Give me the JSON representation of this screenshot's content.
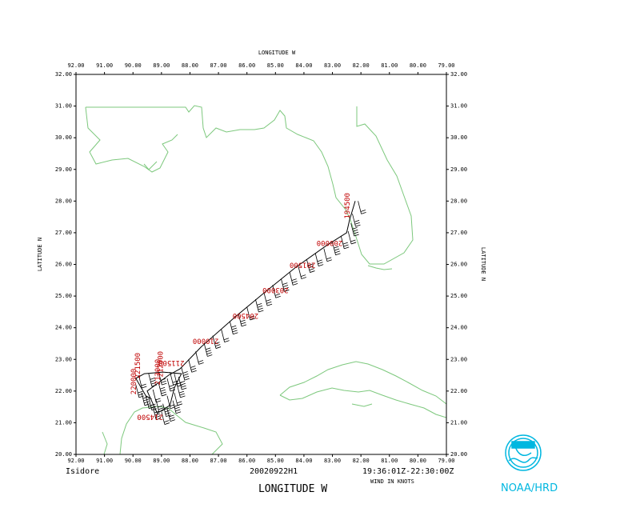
{
  "title_top": "LONGITUDE  W",
  "xlabel_bottom": "LONGITUDE   W",
  "ylabel_left": "LATITUDE   N",
  "ylabel_right": "LATITUDE   N",
  "storm_name": "Isidore",
  "flight_id": "20020922H1",
  "time_range": "19:36:01Z-22:30:00Z",
  "wind_units": "WIND IN KNOTS",
  "agency": "NOAA/HRD",
  "colors": {
    "coast": "#7dc87d",
    "track": "#000000",
    "time_labels": "#c00000",
    "logo": "#00b7e0"
  },
  "map": {
    "lon_range": [
      79,
      92
    ],
    "lat_range": [
      20,
      32
    ],
    "lon_ticks": [
      "92.00",
      "91.00",
      "90.00",
      "89.00",
      "88.00",
      "87.00",
      "86.00",
      "85.00",
      "84.00",
      "83.00",
      "82.00",
      "81.00",
      "80.00",
      "79.00"
    ],
    "lat_ticks": [
      "32.00",
      "31.00",
      "30.00",
      "29.00",
      "28.00",
      "27.00",
      "26.00",
      "25.00",
      "24.00",
      "23.00",
      "22.00",
      "21.00",
      "20.00"
    ]
  },
  "time_labels": [
    {
      "text": "194500",
      "lon": 82.4,
      "lat": 27.85,
      "rot": -90
    },
    {
      "text": "200000",
      "lon": 83.1,
      "lat": 26.75,
      "rot": 180
    },
    {
      "text": "201500",
      "lon": 84.05,
      "lat": 26.05,
      "rot": 180
    },
    {
      "text": "203000",
      "lon": 85.0,
      "lat": 25.25,
      "rot": 180
    },
    {
      "text": "204500",
      "lon": 86.05,
      "lat": 24.45,
      "rot": 180
    },
    {
      "text": "210000",
      "lon": 87.45,
      "lat": 23.65,
      "rot": 180
    },
    {
      "text": "211500",
      "lon": 88.65,
      "lat": 22.95,
      "rot": 180
    },
    {
      "text": "212000",
      "lon": 88.95,
      "lat": 22.85,
      "rot": -90
    },
    {
      "text": "213000",
      "lon": 89.05,
      "lat": 22.6,
      "rot": -90
    },
    {
      "text": "221500",
      "lon": 89.75,
      "lat": 22.8,
      "rot": -90
    },
    {
      "text": "220000",
      "lon": 89.9,
      "lat": 22.3,
      "rot": -90
    },
    {
      "text": "214500",
      "lon": 89.4,
      "lat": 21.25,
      "rot": 180
    }
  ],
  "track": [
    [
      82.2,
      28.0
    ],
    [
      82.4,
      27.4
    ],
    [
      82.5,
      27.0
    ],
    [
      83.2,
      26.6
    ],
    [
      84.3,
      25.9
    ],
    [
      85.4,
      25.1
    ],
    [
      86.4,
      24.35
    ],
    [
      87.6,
      23.4
    ],
    [
      88.35,
      22.7
    ],
    [
      88.75,
      22.5
    ],
    [
      89.5,
      22.0
    ],
    [
      89.15,
      21.3
    ],
    [
      88.7,
      21.55
    ],
    [
      88.55,
      22.1
    ],
    [
      88.3,
      22.55
    ],
    [
      88.95,
      22.6
    ],
    [
      89.6,
      22.55
    ],
    [
      89.9,
      22.4
    ],
    [
      89.55,
      21.85
    ],
    [
      89.35,
      21.75
    ]
  ],
  "barbs": [
    [
      82.1,
      28.0
    ],
    [
      82.3,
      27.6
    ],
    [
      82.35,
      27.3
    ],
    [
      82.45,
      27.05
    ],
    [
      82.7,
      26.9
    ],
    [
      83.0,
      26.7
    ],
    [
      83.3,
      26.5
    ],
    [
      83.6,
      26.35
    ],
    [
      83.9,
      26.15
    ],
    [
      84.2,
      25.95
    ],
    [
      84.5,
      25.75
    ],
    [
      84.8,
      25.55
    ],
    [
      85.1,
      25.35
    ],
    [
      85.4,
      25.1
    ],
    [
      85.7,
      24.9
    ],
    [
      86.0,
      24.65
    ],
    [
      86.3,
      24.45
    ],
    [
      86.6,
      24.2
    ],
    [
      86.9,
      23.95
    ],
    [
      87.2,
      23.75
    ],
    [
      87.5,
      23.5
    ],
    [
      87.8,
      23.25
    ],
    [
      88.05,
      23.0
    ],
    [
      88.3,
      22.75
    ],
    [
      88.55,
      22.55
    ],
    [
      88.8,
      22.4
    ],
    [
      89.1,
      22.25
    ],
    [
      89.3,
      22.05
    ],
    [
      89.45,
      21.8
    ],
    [
      89.3,
      21.5
    ],
    [
      89.0,
      21.35
    ],
    [
      88.8,
      21.45
    ],
    [
      88.6,
      21.7
    ],
    [
      88.55,
      21.95
    ],
    [
      88.45,
      22.2
    ],
    [
      88.4,
      22.45
    ],
    [
      88.7,
      22.6
    ],
    [
      89.1,
      22.6
    ],
    [
      89.45,
      22.55
    ],
    [
      89.8,
      22.5
    ],
    [
      89.9,
      22.2
    ],
    [
      89.7,
      21.95
    ],
    [
      89.55,
      21.85
    ],
    [
      89.2,
      21.75
    ],
    [
      88.95,
      21.6
    ],
    [
      88.8,
      21.85
    ]
  ]
}
